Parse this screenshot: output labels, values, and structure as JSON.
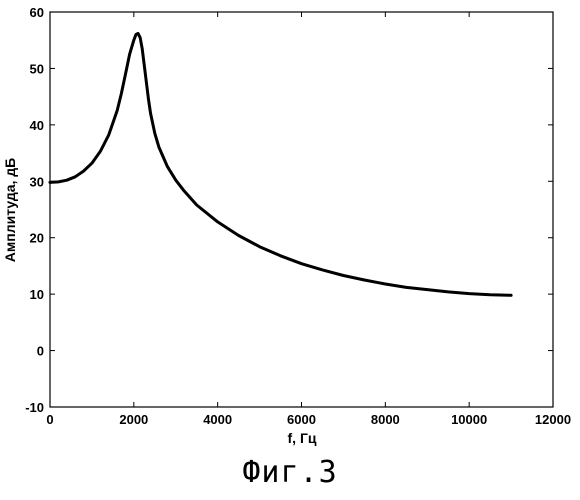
{
  "caption": "Фиг.3",
  "chart_data": {
    "type": "line",
    "title": "",
    "xlabel": "f, Гц",
    "ylabel": "Амплитуда, дБ",
    "xlim": [
      0,
      12000
    ],
    "ylim": [
      -10,
      60
    ],
    "xticks": [
      0,
      2000,
      4000,
      6000,
      8000,
      10000,
      12000
    ],
    "yticks": [
      -10,
      0,
      10,
      20,
      30,
      40,
      50,
      60
    ],
    "grid": false,
    "series": [
      {
        "color": "#000000",
        "x": [
          0,
          200,
          400,
          600,
          800,
          1000,
          1200,
          1400,
          1600,
          1700,
          1800,
          1900,
          2000,
          2050,
          2100,
          2150,
          2200,
          2250,
          2300,
          2350,
          2400,
          2500,
          2600,
          2800,
          3000,
          3200,
          3500,
          4000,
          4500,
          5000,
          5500,
          6000,
          6500,
          7000,
          7500,
          8000,
          8500,
          9000,
          9500,
          10000,
          10500,
          11000
        ],
        "y": [
          29.8,
          29.9,
          30.2,
          30.8,
          31.8,
          33.2,
          35.3,
          38.2,
          42.5,
          45.5,
          49.0,
          52.5,
          55.0,
          56.0,
          56.2,
          55.5,
          53.5,
          50.5,
          47.5,
          44.5,
          42.0,
          38.5,
          36.0,
          32.6,
          30.2,
          28.3,
          25.8,
          22.8,
          20.4,
          18.4,
          16.8,
          15.4,
          14.3,
          13.3,
          12.5,
          11.8,
          11.2,
          10.8,
          10.4,
          10.1,
          9.9,
          9.8
        ]
      }
    ]
  }
}
